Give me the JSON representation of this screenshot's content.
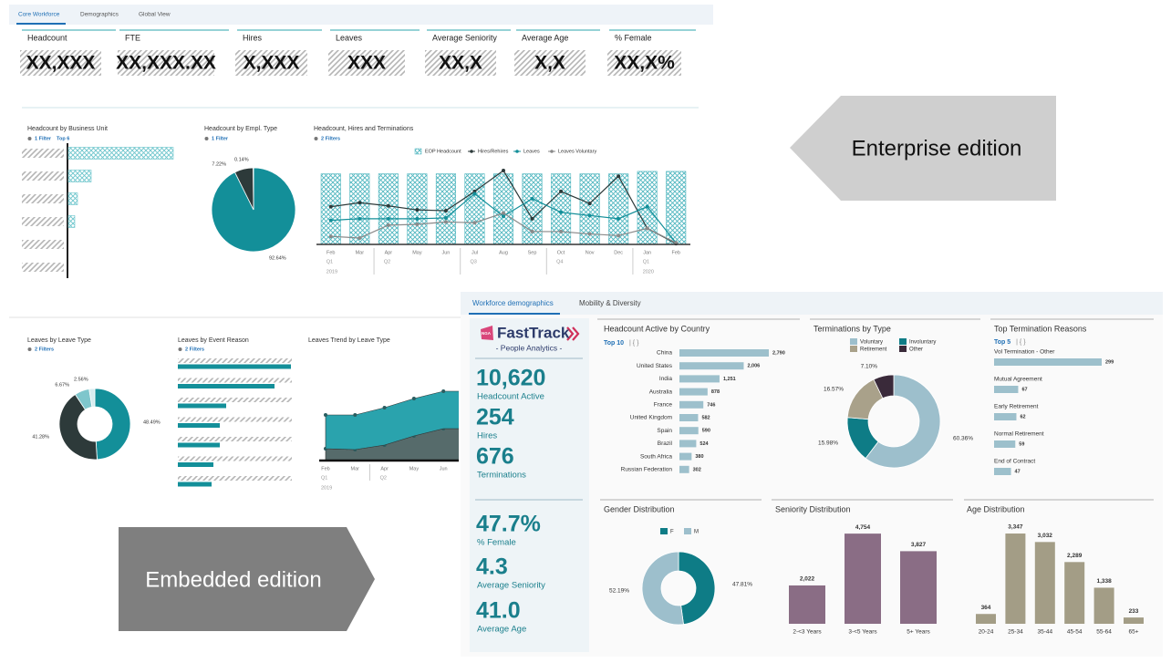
{
  "enterprise": {
    "tabs": [
      "Core Workforce",
      "Demographics",
      "Global View"
    ],
    "kpis": [
      {
        "label": "Headcount",
        "value": "XX,XXX"
      },
      {
        "label": "FTE",
        "value": "XX,XXX.XX"
      },
      {
        "label": "Hires",
        "value": "X,XXX"
      },
      {
        "label": "Leaves",
        "value": "XXX"
      },
      {
        "label": "Average Seniority",
        "value": "XX,X"
      },
      {
        "label": "Average Age",
        "value": "X,X"
      },
      {
        "label": "% Female",
        "value": "XX,X%"
      }
    ],
    "charts": [
      {
        "type": "hbar",
        "title": "Headcount by Business Unit",
        "filters": "1 Filter",
        "top": "Top 6",
        "categories": [
          null,
          null,
          null,
          null,
          null,
          null
        ],
        "values": [
          115,
          25,
          10,
          7,
          0,
          0
        ],
        "xlim": [
          0,
          120
        ],
        "color": "#6cc5cc",
        "hatched": true
      },
      {
        "type": "pie",
        "title": "Headcount by Empl. Type",
        "filters": "1 Filter",
        "values": [
          92.64,
          7.22,
          0.14
        ],
        "value_labels": [
          "92.64%",
          "7.22%",
          "0.14%"
        ],
        "colors": [
          "#138f99",
          "#2d3a3a",
          "#cfe8ea"
        ]
      },
      {
        "type": "combo",
        "title": "Headcount, Hires and Terminations",
        "filters": "2 Filters",
        "categories": [
          "Feb",
          "Mar",
          "Apr",
          "May",
          "Jun",
          "Jul",
          "Aug",
          "Sep",
          "Oct",
          "Nov",
          "Dec",
          "Jan",
          "Feb"
        ],
        "quarters": [
          "Q1",
          null,
          "Q2",
          null,
          null,
          "Q3",
          null,
          null,
          "Q4",
          null,
          null,
          "Q1",
          null
        ],
        "years": [
          "2019",
          null,
          null,
          null,
          null,
          null,
          null,
          null,
          null,
          null,
          null,
          "2020",
          null
        ],
        "ylim": [
          0,
          100
        ],
        "series": [
          {
            "name": "EOP Headcount",
            "type": "bar",
            "color": "#4fb6bf",
            "values": [
              88,
              88,
              88,
              88,
              88,
              88,
              88,
              88,
              88,
              88,
              88,
              91,
              91
            ]
          },
          {
            "name": "Hires/Rehires",
            "type": "line",
            "color": "#2d3a3a",
            "values": [
              47,
              52,
              48,
              43,
              42,
              66,
              92,
              32,
              66,
              51,
              85,
              20,
              1
            ]
          },
          {
            "name": "Leaves",
            "type": "line",
            "color": "#138f99",
            "values": [
              30,
              32,
              32,
              32,
              33,
              63,
              35,
              57,
              40,
              36,
              32,
              47,
              2
            ]
          },
          {
            "name": "Leaves Voluntary",
            "type": "line",
            "color": "#8a8a8a",
            "values": [
              10,
              8,
              24,
              25,
              28,
              27,
              39,
              16,
              16,
              13,
              11,
              20,
              2
            ]
          }
        ]
      }
    ]
  },
  "callouts": [
    "Enterprise edition",
    "Embedded edition"
  ],
  "legacy": {
    "charts": [
      {
        "type": "pie",
        "title": "Leaves by Leave Type",
        "filters": "2 Filters",
        "values": [
          48.49,
          41.28,
          6.67,
          2.56
        ],
        "value_labels": [
          "48.49%",
          "41.28%",
          "6.67%",
          "2.56%"
        ],
        "colors": [
          "#138f99",
          "#2d3a3a",
          "#7fc6cc",
          "#d6ecef"
        ]
      },
      {
        "type": "hbar",
        "title": "Leaves by Event Reason",
        "filters": "2 Filters",
        "categories": [
          null,
          null,
          null,
          null,
          null,
          null,
          null
        ],
        "values": [
          124,
          106,
          53,
          46,
          46,
          39,
          37
        ],
        "xlim": [
          0,
          130
        ],
        "color": "#138f99"
      },
      {
        "type": "area",
        "title": "Leaves Trend by Leave Type",
        "categories": [
          "Feb",
          "Mar",
          "Apr",
          "May",
          "Jun"
        ],
        "quarters": [
          "Q1",
          null,
          "Q2",
          null,
          null
        ],
        "years": [
          "2019",
          null,
          null,
          null,
          null
        ],
        "ylim": [
          0,
          110
        ],
        "series": [
          {
            "color": "#566b6b",
            "values": [
              13,
              12,
              17,
              27,
              35
            ]
          },
          {
            "color": "#2aa3ad",
            "values": [
              37,
              38,
              41,
              41,
              41
            ]
          }
        ]
      }
    ]
  },
  "embedded": {
    "tabs": [
      "Workforce demographics",
      "Mobility & Diversity"
    ],
    "brand": {
      "badge": "NGA",
      "name": "FastTrack",
      "tagline": "- People Analytics -"
    },
    "kpis": [
      {
        "value": "10,620",
        "label": "Headcount Active"
      },
      {
        "value": "254",
        "label": "Hires"
      },
      {
        "value": "676",
        "label": "Terminations"
      },
      {
        "value": "47.7%",
        "label": "% Female"
      },
      {
        "value": "4.3",
        "label": "Average Seniority"
      },
      {
        "value": "41.0",
        "label": "Average Age"
      }
    ],
    "charts": [
      {
        "type": "hbar",
        "title": "Headcount Active by Country",
        "top": "Top 10",
        "controls": "| { }",
        "categories": [
          "China",
          "United States",
          "India",
          "Australia",
          "France",
          "United Kingdom",
          "Spain",
          "Brazil",
          "South Africa",
          "Russian Federation"
        ],
        "values": [
          2790,
          2006,
          1251,
          878,
          746,
          582,
          590,
          524,
          380,
          302
        ],
        "value_labels": [
          "2,790",
          "2,006",
          "1,251",
          "878",
          "746",
          "582",
          "590",
          "524",
          "380",
          "302"
        ],
        "xlim": [
          0,
          3000
        ],
        "color": "#9dc0cc"
      },
      {
        "type": "pie",
        "title": "Terminations by Type",
        "legend": true,
        "categories": [
          "Voluntary",
          "Involuntary",
          "Retirement",
          "Other"
        ],
        "values": [
          60.36,
          15.98,
          16.57,
          7.1
        ],
        "value_labels": [
          "60.36%",
          "15.98%",
          "16.57%",
          "7.10%"
        ],
        "colors": [
          "#9dbfcc",
          "#0e7c86",
          "#a9a18a",
          "#3a2a3a"
        ]
      },
      {
        "type": "hbar",
        "title": "Top Termination Reasons",
        "top": "Top 5",
        "controls": "| { }",
        "categories": [
          "Vol Termination - Other",
          "Mutual Agreement",
          "Early Retirement",
          "Normal Retirement",
          "End of Contract"
        ],
        "values": [
          299,
          67,
          62,
          59,
          47
        ],
        "xlim": [
          0,
          300
        ],
        "color": "#9dc0cc"
      },
      {
        "type": "pie",
        "title": "Gender Distribution",
        "legend": true,
        "categories": [
          "F",
          "M"
        ],
        "values": [
          47.81,
          52.19
        ],
        "value_labels": [
          "47.81%",
          "52.19%"
        ],
        "colors": [
          "#0e7c86",
          "#9dbfcc"
        ]
      },
      {
        "type": "bar",
        "title": "Seniority Distribution",
        "categories": [
          "2-<3 Years",
          "3-<5 Years",
          "5+ Years"
        ],
        "values": [
          2022,
          4754,
          3827
        ],
        "value_labels": [
          "2,022",
          "4,754",
          "3,827"
        ],
        "ylim": [
          0,
          5000
        ],
        "color": "#8a6d85"
      },
      {
        "type": "bar",
        "title": "Age Distribution",
        "categories": [
          "20-24",
          "25-34",
          "35-44",
          "45-54",
          "55-64",
          "65+"
        ],
        "values": [
          364,
          3347,
          3032,
          2289,
          1338,
          233
        ],
        "value_labels": [
          "364",
          "3,347",
          "3,032",
          "2,289",
          "1,338",
          "233"
        ],
        "ylim": [
          0,
          3500
        ],
        "color": "#a39d86"
      }
    ]
  }
}
